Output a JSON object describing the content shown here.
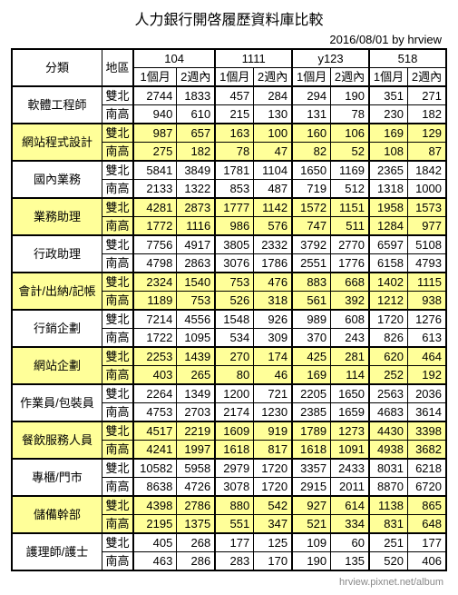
{
  "title": "人力銀行開啓履歷資料庫比較",
  "subtitle": "2016/08/01 by hrview",
  "footer": "hrview.pixnet.net/album",
  "header": {
    "category": "分類",
    "region": "地區",
    "sites": [
      "104",
      "1111",
      "y123",
      "518"
    ],
    "periods": [
      "1個月",
      "2週內"
    ]
  },
  "regions": [
    "雙北",
    "南高"
  ],
  "categories": [
    {
      "name": "軟體工程師",
      "hl": false,
      "rows": [
        [
          2744,
          1833,
          457,
          284,
          294,
          190,
          351,
          271
        ],
        [
          940,
          610,
          215,
          130,
          131,
          78,
          230,
          182
        ]
      ]
    },
    {
      "name": "網站程式設計",
      "hl": true,
      "rows": [
        [
          987,
          657,
          163,
          100,
          160,
          106,
          169,
          129
        ],
        [
          275,
          182,
          78,
          47,
          82,
          52,
          108,
          87
        ]
      ]
    },
    {
      "name": "國內業務",
      "hl": false,
      "rows": [
        [
          5841,
          3849,
          1781,
          1104,
          1650,
          1169,
          2365,
          1842
        ],
        [
          2133,
          1322,
          853,
          487,
          719,
          512,
          1318,
          1000
        ]
      ]
    },
    {
      "name": "業務助理",
      "hl": true,
      "rows": [
        [
          4281,
          2873,
          1777,
          1142,
          1572,
          1151,
          1958,
          1573
        ],
        [
          1772,
          1116,
          986,
          576,
          747,
          511,
          1284,
          977
        ]
      ]
    },
    {
      "name": "行政助理",
      "hl": false,
      "rows": [
        [
          7756,
          4917,
          3805,
          2332,
          3792,
          2770,
          6597,
          5108
        ],
        [
          4798,
          2863,
          3076,
          1786,
          2551,
          1776,
          6158,
          4793
        ]
      ]
    },
    {
      "name": "會計/出納/記帳",
      "hl": true,
      "rows": [
        [
          2324,
          1540,
          753,
          476,
          883,
          668,
          1402,
          1115
        ],
        [
          1189,
          753,
          526,
          318,
          561,
          392,
          1212,
          938
        ]
      ]
    },
    {
      "name": "行銷企劃",
      "hl": false,
      "rows": [
        [
          7214,
          4556,
          1548,
          926,
          989,
          608,
          1720,
          1276
        ],
        [
          1722,
          1095,
          534,
          309,
          370,
          243,
          826,
          613
        ]
      ]
    },
    {
      "name": "網站企劃",
      "hl": true,
      "rows": [
        [
          2253,
          1439,
          270,
          174,
          425,
          281,
          620,
          464
        ],
        [
          403,
          265,
          80,
          46,
          169,
          114,
          252,
          192
        ]
      ]
    },
    {
      "name": "作業員/包裝員",
      "hl": false,
      "rows": [
        [
          2264,
          1349,
          1200,
          721,
          2205,
          1650,
          2563,
          2036
        ],
        [
          4753,
          2703,
          2174,
          1230,
          2385,
          1659,
          4683,
          3614
        ]
      ]
    },
    {
      "name": "餐飲服務人員",
      "hl": true,
      "rows": [
        [
          4517,
          2219,
          1609,
          919,
          1789,
          1273,
          4430,
          3398
        ],
        [
          4241,
          1997,
          1618,
          817,
          1618,
          1091,
          4938,
          3682
        ]
      ]
    },
    {
      "name": "專櫃/門市",
      "hl": false,
      "rows": [
        [
          10582,
          5958,
          2979,
          1720,
          3357,
          2433,
          8031,
          6218
        ],
        [
          8638,
          4726,
          3078,
          1720,
          2915,
          2011,
          8870,
          6720
        ]
      ]
    },
    {
      "name": "儲備幹部",
      "hl": true,
      "rows": [
        [
          4398,
          2786,
          880,
          542,
          927,
          614,
          1138,
          865
        ],
        [
          2195,
          1375,
          551,
          347,
          521,
          334,
          831,
          648
        ]
      ]
    },
    {
      "name": "護理師/護士",
      "hl": false,
      "rows": [
        [
          405,
          268,
          177,
          125,
          109,
          60,
          251,
          177
        ],
        [
          463,
          286,
          283,
          170,
          190,
          135,
          520,
          406
        ]
      ]
    }
  ]
}
